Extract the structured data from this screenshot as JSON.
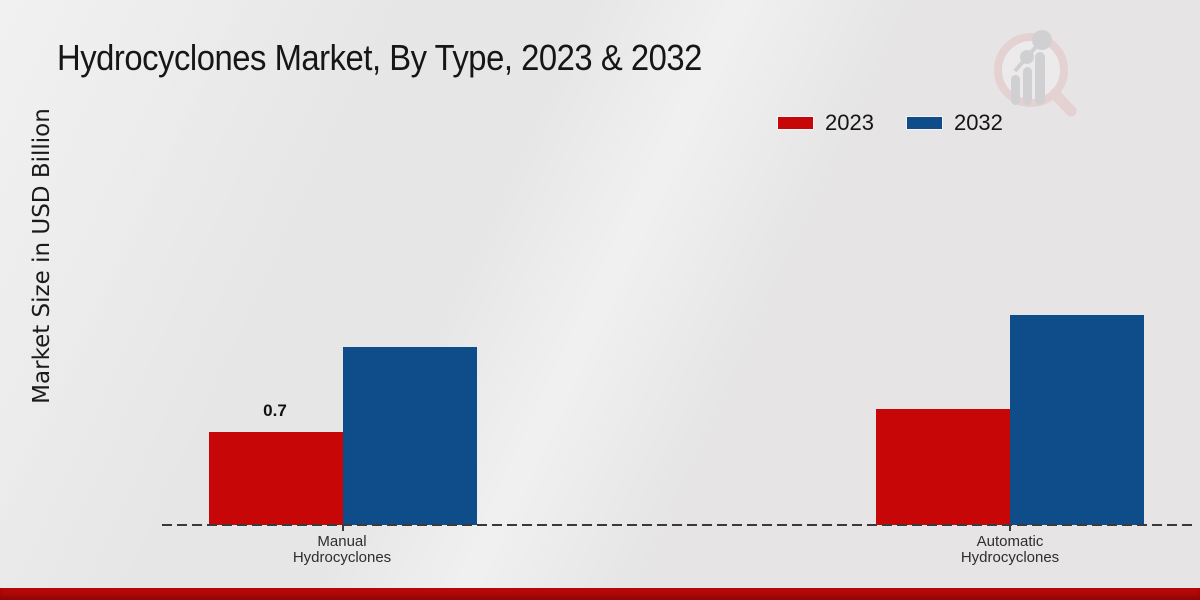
{
  "page": {
    "title": "Hydrocyclones Market, By Type, 2023 & 2032",
    "y_axis_label": "Market Size in USD Billion"
  },
  "legend": [
    {
      "label": "2023",
      "color": "#c70707"
    },
    {
      "label": "2032",
      "color": "#0f4d8a"
    }
  ],
  "chart_data": {
    "type": "bar",
    "title": "Hydrocyclones Market, By Type, 2023 & 2032",
    "ylabel": "Market Size in USD Billion",
    "xlabel": "",
    "categories": [
      "Manual Hydrocyclones",
      "Automatic Hydrocyclones"
    ],
    "categories_display": [
      [
        "Manual",
        "Hydrocyclones"
      ],
      [
        "Automatic",
        "Hydrocyclones"
      ]
    ],
    "series": [
      {
        "name": "2023",
        "color": "#c70707",
        "values": [
          0.7,
          0.87
        ]
      },
      {
        "name": "2032",
        "color": "#0f4d8a",
        "values": [
          1.34,
          1.58
        ]
      }
    ],
    "data_labels": [
      {
        "series": "2023",
        "category": "Manual Hydrocyclones",
        "text": "0.7",
        "value": 0.7
      }
    ],
    "ylim": [
      0,
      3.2
    ],
    "grid": false,
    "y_axis_ticks_visible": false,
    "legend_position": "top-right",
    "baseline_style": "dashed"
  },
  "watermark": {
    "icon": "magnifier-bar-chart-logo"
  },
  "colors": {
    "background": "#ebeaea",
    "axis_line": "#3a3a3a",
    "footer_bar": "#b50808",
    "text_primary": "#161616",
    "text_secondary": "#2e2e2e"
  }
}
